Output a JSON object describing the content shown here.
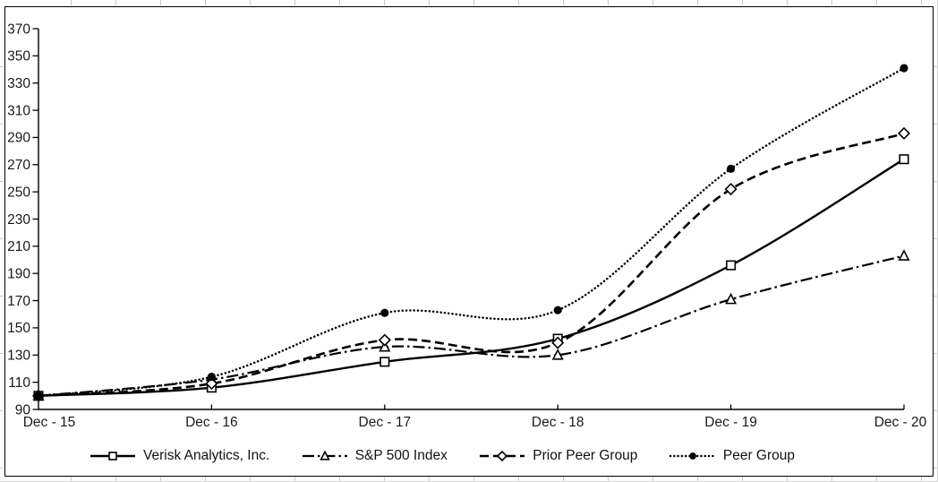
{
  "figure": {
    "background": "#ffffff",
    "frame_color": "#000000",
    "axis_color": "#000000",
    "text_color": "#1a1a1a"
  },
  "chart_data": {
    "type": "line",
    "title": "",
    "xlabel": "",
    "ylabel": "",
    "grid": false,
    "legend_position": "bottom",
    "x_labels": [
      "Dec - 15",
      "Dec - 16",
      "Dec - 17",
      "Dec - 18",
      "Dec - 19",
      "Dec - 20"
    ],
    "y_ticks": [
      90,
      110,
      130,
      150,
      170,
      190,
      210,
      230,
      250,
      270,
      290,
      310,
      330,
      350,
      370
    ],
    "ylim": [
      90,
      370
    ],
    "series": [
      {
        "name": "Verisk Analytics, Inc.",
        "values": [
          100,
          106,
          125,
          142,
          196,
          274
        ],
        "line_style": "solid",
        "marker": "square-open",
        "color": "#000000"
      },
      {
        "name": "S&P 500 Index",
        "values": [
          100,
          112,
          136,
          130,
          171,
          203
        ],
        "line_style": "dash-dot",
        "marker": "triangle-open",
        "color": "#000000"
      },
      {
        "name": "Prior Peer Group",
        "values": [
          100,
          109,
          141,
          139,
          252,
          293
        ],
        "line_style": "dashed",
        "marker": "diamond-open",
        "color": "#000000"
      },
      {
        "name": "Peer Group",
        "values": [
          100,
          114,
          161,
          163,
          267,
          341
        ],
        "line_style": "dotted",
        "marker": "circle-filled",
        "color": "#000000"
      }
    ]
  }
}
